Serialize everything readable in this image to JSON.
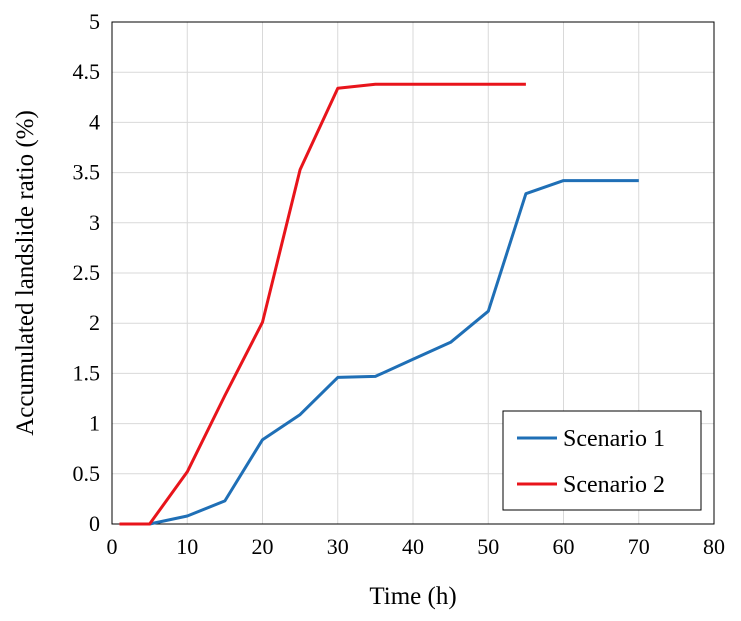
{
  "chart_data": {
    "type": "line",
    "xlabel": "Time (h)",
    "ylabel": "Accumulated landslide ratio (%)",
    "xlim": [
      0,
      80
    ],
    "ylim": [
      0,
      5
    ],
    "xticks": [
      0,
      10,
      20,
      30,
      40,
      50,
      60,
      70,
      80
    ],
    "yticks": [
      0,
      0.5,
      1,
      1.5,
      2,
      2.5,
      3,
      3.5,
      4,
      4.5,
      5
    ],
    "xtick_labels": [
      "0",
      "10",
      "20",
      "30",
      "40",
      "50",
      "60",
      "70",
      "80"
    ],
    "ytick_labels": [
      "0",
      "0.5",
      "1",
      "1.5",
      "2",
      "2.5",
      "3",
      "3.5",
      "4",
      "4.5",
      "5"
    ],
    "grid": true,
    "legend_position": "bottom-right",
    "series": [
      {
        "name": "Scenario 1",
        "color": "#1f6fb6",
        "x": [
          1,
          5,
          10,
          15,
          20,
          25,
          30,
          35,
          40,
          45,
          50,
          55,
          60,
          65,
          70
        ],
        "y": [
          0,
          0,
          0.08,
          0.23,
          0.84,
          1.09,
          1.46,
          1.47,
          1.64,
          1.81,
          2.12,
          3.29,
          3.42,
          3.42,
          3.42
        ]
      },
      {
        "name": "Scenario 2",
        "color": "#e8141b",
        "x": [
          1,
          5,
          10,
          15,
          20,
          25,
          30,
          35,
          40,
          45,
          50,
          55
        ],
        "y": [
          0,
          0,
          0.52,
          1.28,
          2.01,
          3.53,
          4.34,
          4.38,
          4.38,
          4.38,
          4.38,
          4.38
        ]
      }
    ]
  }
}
